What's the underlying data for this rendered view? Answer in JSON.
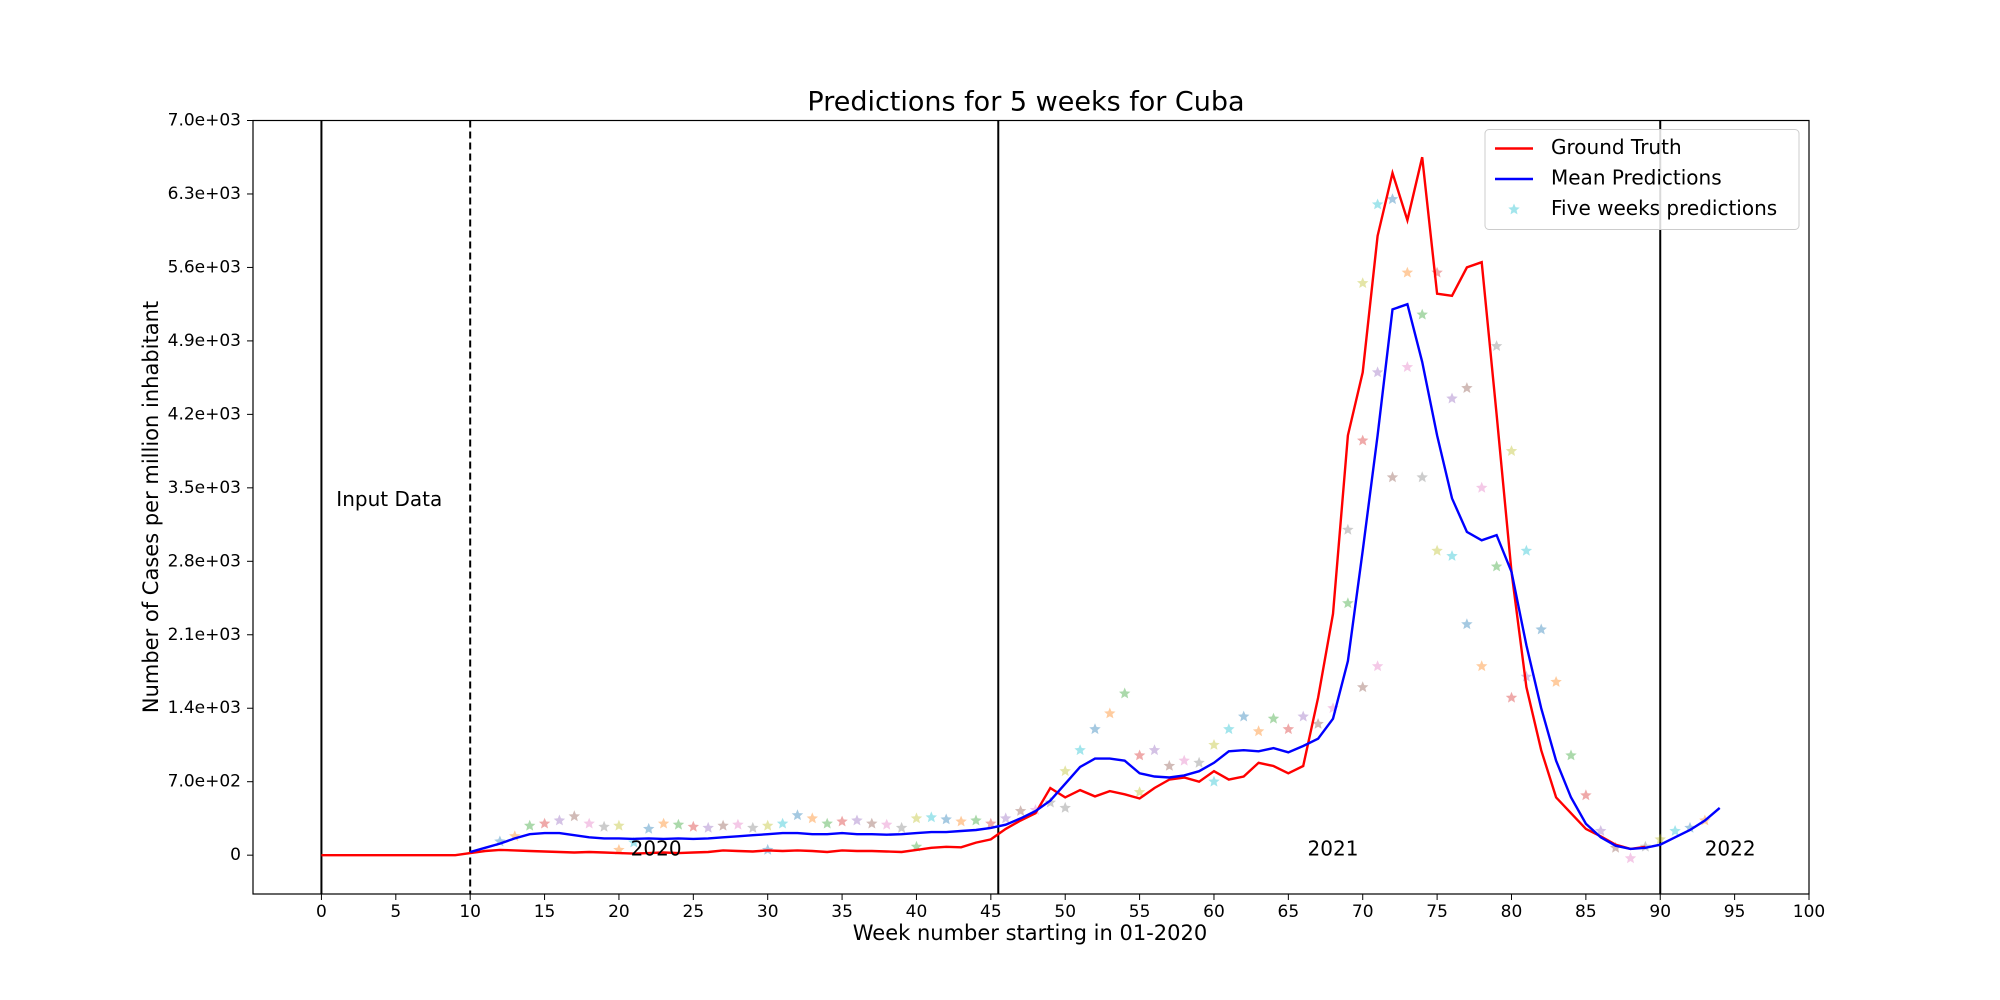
{
  "chart_data": {
    "type": "line",
    "title": "Predictions for 5 weeks for Cuba",
    "xlabel": "Week number starting in 01-2020",
    "ylabel": "Number of Cases per million inhabitant",
    "xlim": [
      -4.6,
      100
    ],
    "ylim": [
      -370,
      7000
    ],
    "xticks": [
      0,
      5,
      10,
      15,
      20,
      25,
      30,
      35,
      40,
      45,
      50,
      55,
      60,
      65,
      70,
      75,
      80,
      85,
      90,
      95,
      100
    ],
    "yticks": [
      0,
      {
        "value": 700,
        "label": "7.0e+02"
      },
      {
        "value": 1400,
        "label": "1.4e+03"
      },
      {
        "value": 2100,
        "label": "2.1e+03"
      },
      {
        "value": 2800,
        "label": "2.8e+03"
      },
      {
        "value": 3500,
        "label": "3.5e+03"
      },
      {
        "value": 4200,
        "label": "4.2e+03"
      },
      {
        "value": 4900,
        "label": "4.9e+03"
      },
      {
        "value": 5600,
        "label": "5.6e+03"
      },
      {
        "value": 6300,
        "label": "6.3e+03"
      },
      {
        "value": 7000,
        "label": "7.0e+03"
      }
    ],
    "grid": false,
    "legend": "upper right",
    "vlines": [
      {
        "x": 0,
        "style": "solid"
      },
      {
        "x": 10,
        "style": "dashed"
      },
      {
        "x": 45.5,
        "style": "solid"
      },
      {
        "x": 90,
        "style": "solid"
      }
    ],
    "annotations": [
      {
        "text": "Input Data",
        "x": 1,
        "y": 3380,
        "align": "start"
      },
      {
        "text": "2020",
        "x": 22.5,
        "y": 50,
        "align": "middle"
      },
      {
        "text": "2021",
        "x": 68,
        "y": 50,
        "align": "middle"
      },
      {
        "text": "2022",
        "x": 94.7,
        "y": 50,
        "align": "middle"
      }
    ],
    "series": [
      {
        "name": "Ground Truth",
        "color": "#ff0000",
        "kind": "line",
        "x": [
          0,
          1,
          2,
          3,
          4,
          5,
          6,
          7,
          8,
          9,
          10,
          11,
          12,
          13,
          14,
          15,
          16,
          17,
          18,
          19,
          20,
          21,
          22,
          23,
          24,
          25,
          26,
          27,
          28,
          29,
          30,
          31,
          32,
          33,
          34,
          35,
          36,
          37,
          38,
          39,
          40,
          41,
          42,
          43,
          44,
          45,
          46,
          47,
          48,
          49,
          50,
          51,
          52,
          53,
          54,
          55,
          56,
          57,
          58,
          59,
          60,
          61,
          62,
          63,
          64,
          65,
          66,
          67,
          68,
          69,
          70,
          71,
          72,
          73,
          74,
          75,
          76,
          77,
          78,
          79,
          80,
          81,
          82,
          83,
          84,
          85,
          86,
          87,
          88,
          89
        ],
        "values": [
          0,
          0,
          0,
          0,
          0,
          0,
          0,
          0,
          0,
          0,
          20,
          40,
          50,
          45,
          40,
          35,
          30,
          25,
          30,
          25,
          20,
          15,
          20,
          25,
          20,
          25,
          30,
          45,
          40,
          35,
          45,
          40,
          45,
          40,
          30,
          45,
          40,
          40,
          35,
          30,
          50,
          70,
          80,
          75,
          120,
          150,
          250,
          330,
          400,
          640,
          550,
          620,
          560,
          610,
          580,
          540,
          640,
          720,
          740,
          700,
          800,
          720,
          750,
          880,
          850,
          780,
          850,
          1500,
          2300,
          4000,
          4600,
          5900,
          6500,
          6050,
          6650,
          5350,
          5330,
          5600,
          5650,
          4200,
          2700,
          1600,
          1000,
          550,
          400,
          250,
          180,
          100,
          60,
          80
        ]
      },
      {
        "name": "Mean Predictions",
        "color": "#0000ff",
        "kind": "line",
        "x": [
          10,
          11,
          12,
          13,
          14,
          15,
          16,
          17,
          18,
          19,
          20,
          21,
          22,
          23,
          24,
          25,
          26,
          27,
          28,
          29,
          30,
          31,
          32,
          33,
          34,
          35,
          36,
          37,
          38,
          39,
          40,
          41,
          42,
          43,
          44,
          45,
          46,
          47,
          48,
          49,
          50,
          51,
          52,
          53,
          54,
          55,
          56,
          57,
          58,
          59,
          60,
          61,
          62,
          63,
          64,
          65,
          66,
          67,
          68,
          69,
          70,
          71,
          72,
          73,
          74,
          75,
          76,
          77,
          78,
          79,
          80,
          81,
          82,
          83,
          84,
          85,
          86,
          87,
          88,
          89,
          90,
          91,
          92,
          93,
          94
        ],
        "values": [
          30,
          70,
          110,
          160,
          200,
          210,
          210,
          190,
          170,
          160,
          160,
          155,
          160,
          155,
          160,
          155,
          160,
          170,
          180,
          190,
          200,
          210,
          210,
          200,
          200,
          210,
          200,
          200,
          195,
          200,
          210,
          220,
          220,
          230,
          240,
          260,
          290,
          350,
          420,
          520,
          680,
          840,
          920,
          920,
          900,
          780,
          750,
          740,
          760,
          800,
          880,
          990,
          1000,
          990,
          1020,
          980,
          1040,
          1110,
          1300,
          1850,
          2900,
          4000,
          5200,
          5250,
          4700,
          4000,
          3400,
          3080,
          3000,
          3050,
          2700,
          2000,
          1400,
          900,
          550,
          300,
          170,
          90,
          60,
          70,
          100,
          170,
          240,
          330,
          450
        ]
      },
      {
        "name": "Five weeks predictions",
        "color": "#17becf",
        "kind": "scatter",
        "palette": [
          "#1f77b4",
          "#ff7f0e",
          "#2ca02c",
          "#d62728",
          "#9467bd",
          "#8c564b",
          "#e377c2",
          "#7f7f7f",
          "#bcbd22",
          "#17becf"
        ],
        "x": [
          12,
          13,
          14,
          15,
          16,
          17,
          18,
          19,
          20,
          21,
          22,
          23,
          24,
          25,
          26,
          27,
          28,
          29,
          30,
          31,
          32,
          33,
          34,
          35,
          36,
          37,
          38,
          39,
          40,
          41,
          42,
          43,
          44,
          45,
          46,
          47,
          48,
          49,
          50,
          51,
          52,
          53,
          54,
          55,
          56,
          57,
          58,
          59,
          60,
          61,
          62,
          63,
          64,
          65,
          66,
          67,
          68,
          69,
          70,
          71,
          72,
          73,
          74,
          75,
          76,
          77,
          78,
          79,
          80,
          81,
          82,
          83,
          84,
          85,
          86,
          87,
          88,
          89,
          90,
          91,
          92,
          93,
          69,
          70,
          71,
          72,
          73,
          74,
          75,
          76,
          77,
          78,
          79,
          80,
          81,
          70,
          71,
          50,
          55,
          60,
          30,
          20,
          40
        ],
        "values": [
          130,
          180,
          280,
          300,
          330,
          370,
          300,
          270,
          280,
          120,
          250,
          300,
          290,
          270,
          260,
          280,
          290,
          260,
          280,
          300,
          380,
          350,
          300,
          320,
          330,
          300,
          290,
          260,
          350,
          360,
          340,
          320,
          330,
          300,
          350,
          420,
          430,
          500,
          800,
          1000,
          1200,
          1350,
          1540,
          950,
          1000,
          850,
          900,
          880,
          1050,
          1200,
          1320,
          1180,
          1300,
          1200,
          1320,
          1250,
          1400,
          3100,
          5450,
          6200,
          6250,
          5550,
          5150,
          5550,
          4350,
          4450,
          3500,
          4850,
          3850,
          2900,
          2150,
          1650,
          950,
          570,
          230,
          70,
          -30,
          80,
          150,
          230,
          260,
          330,
          2400,
          3950,
          4600,
          3600,
          4650,
          3600,
          2900,
          2850,
          2200,
          1800,
          2750,
          1500,
          1700,
          1600,
          1800,
          450,
          600,
          700,
          50,
          50,
          80
        ]
      }
    ]
  }
}
